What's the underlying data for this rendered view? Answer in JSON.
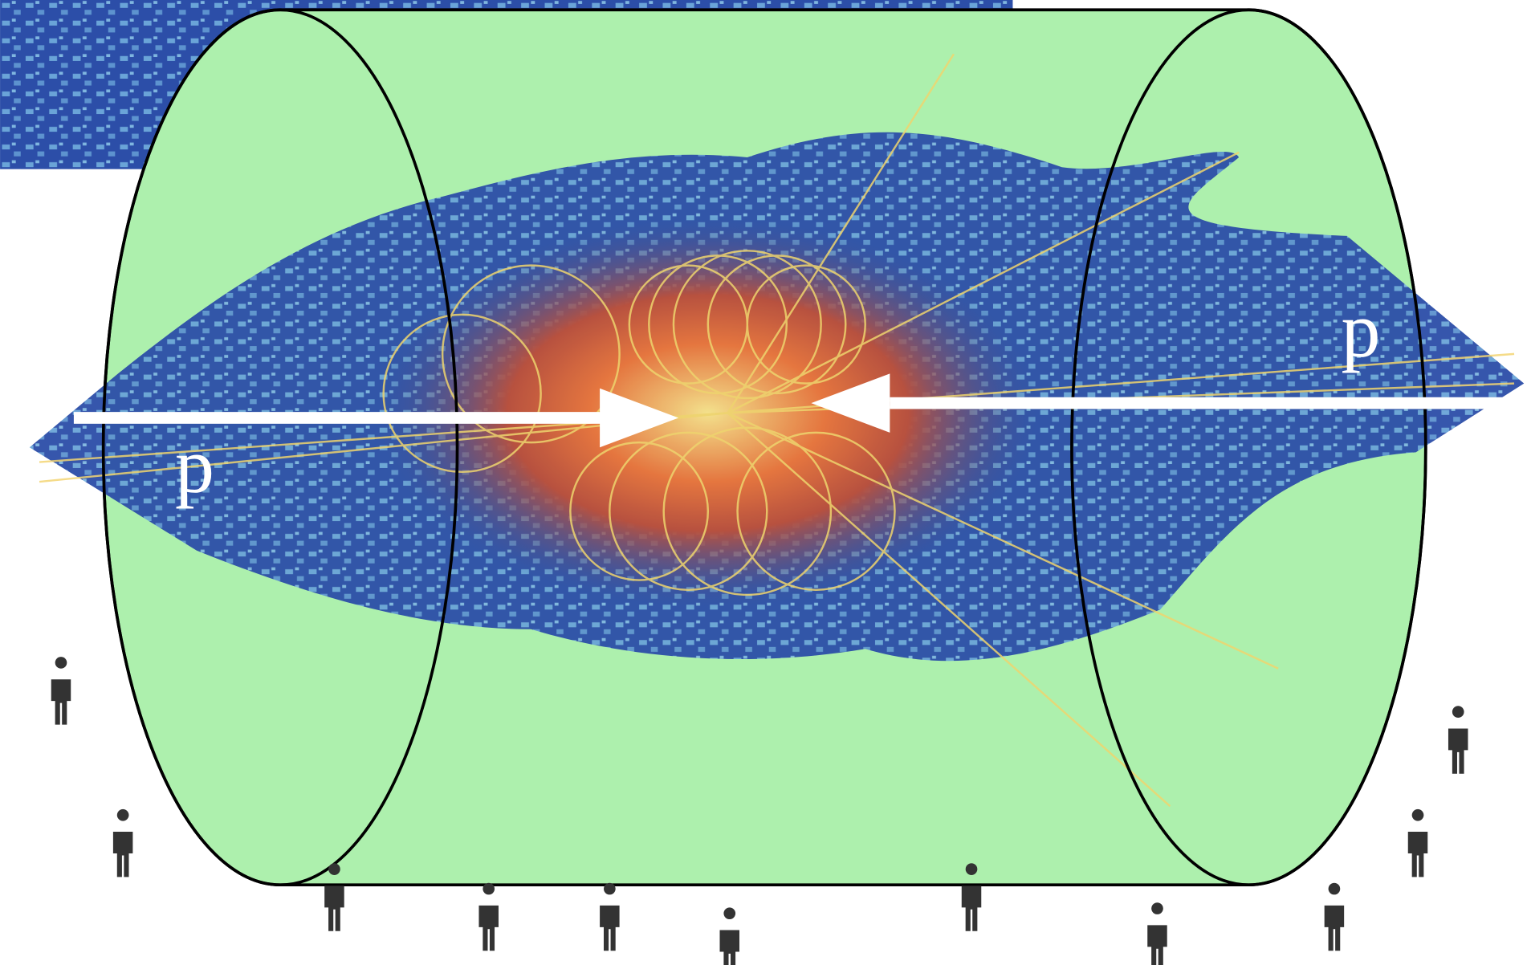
{
  "beams": [
    {
      "label": "p"
    },
    {
      "label": "p"
    }
  ]
}
